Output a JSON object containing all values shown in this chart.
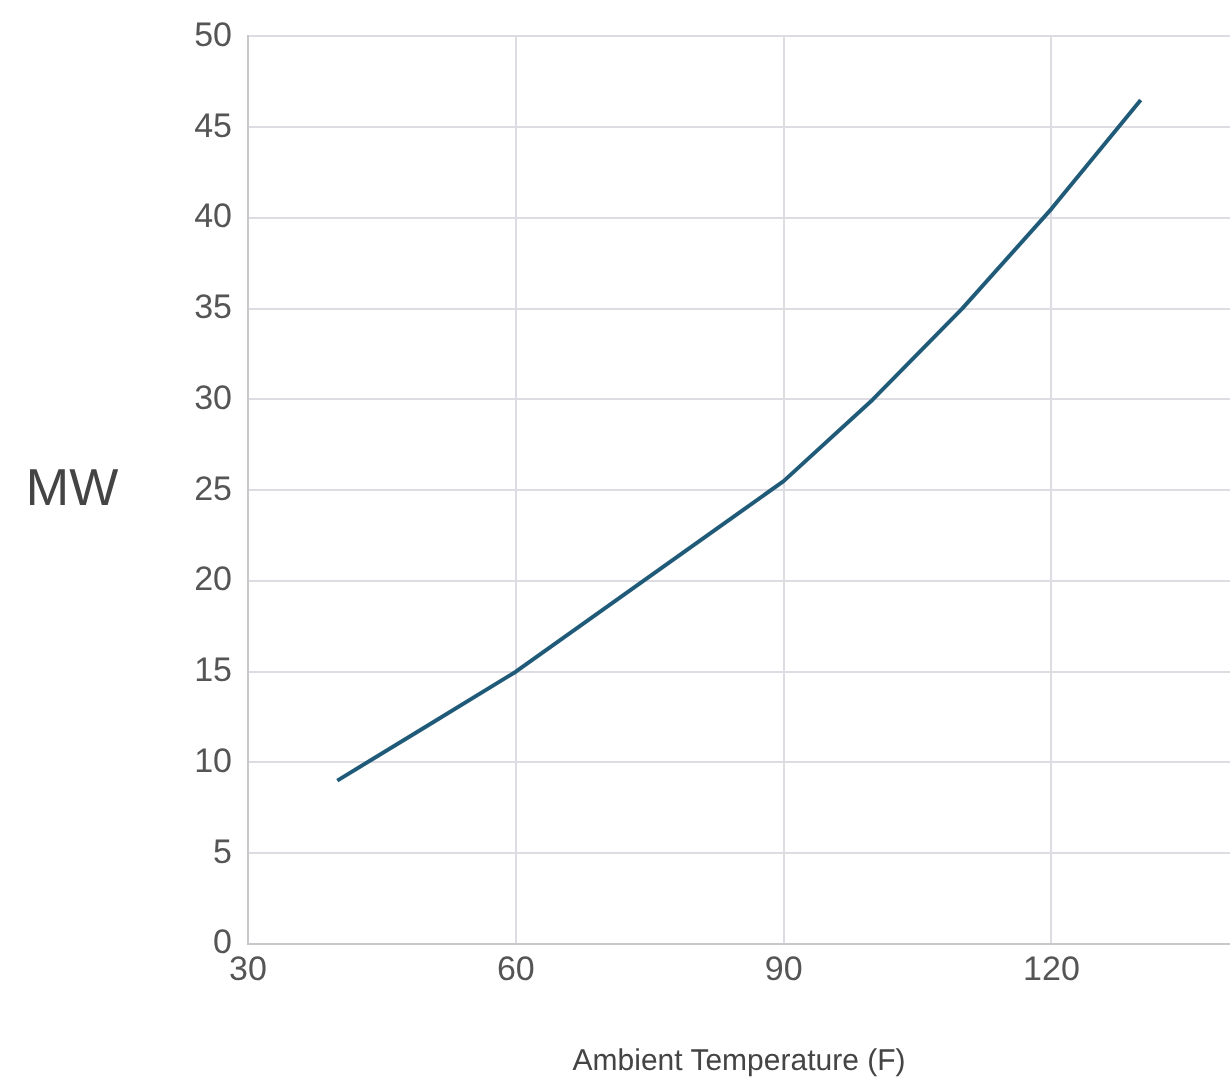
{
  "chart_data": {
    "type": "line",
    "xlabel": "Ambient Temperature (F)",
    "ylabel": "MW",
    "x": [
      40,
      50,
      60,
      70,
      80,
      90,
      100,
      110,
      120,
      130
    ],
    "series": [
      {
        "color": "#1f5a78",
        "values": [
          9,
          12,
          15,
          18.5,
          22,
          25.5,
          30,
          35,
          40.5,
          46.5
        ]
      }
    ],
    "xlim": [
      30,
      140
    ],
    "xticks": [
      30,
      60,
      90,
      120
    ],
    "ylim": [
      0,
      50
    ],
    "yticks": [
      0,
      5,
      10,
      15,
      20,
      25,
      30,
      35,
      40,
      45,
      50
    ],
    "grid": true,
    "legend": false,
    "marker": "none",
    "line_style": "solid"
  }
}
